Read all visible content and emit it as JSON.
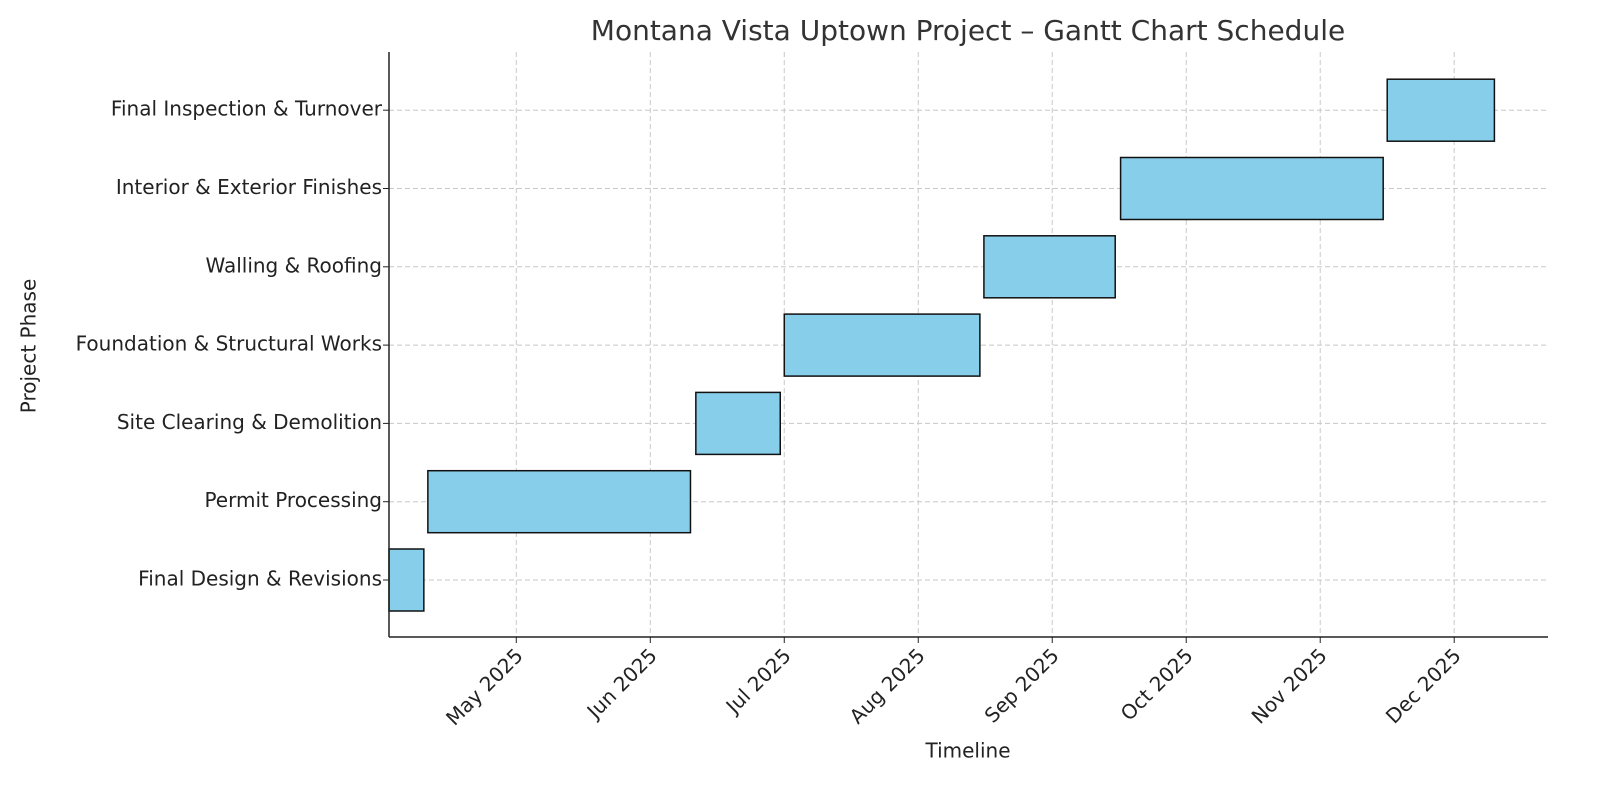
{
  "chart_data": {
    "type": "gantt",
    "title": "Montana Vista Uptown Project – Gantt Chart Schedule",
    "xlabel": "Timeline",
    "ylabel": "Project Phase",
    "categories": [
      "Final Design & Revisions",
      "Permit Processing",
      "Site Clearing & Demolition",
      "Foundation & Structural Works",
      "Walling & Roofing",
      "Interior & Exterior Finishes",
      "Final Inspection & Turnover"
    ],
    "start": [
      4.05,
      4.34,
      6.34,
      7.0,
      8.49,
      9.51,
      11.5
    ],
    "end": [
      4.31,
      6.3,
      6.97,
      8.46,
      9.47,
      11.47,
      12.3
    ],
    "color": "#87ceeb",
    "edgecolor": "#111111",
    "xlim": [
      4.05,
      12.7
    ],
    "xticks": [
      {
        "value": 5,
        "label": "May 2025"
      },
      {
        "value": 6,
        "label": "Jun 2025"
      },
      {
        "value": 7,
        "label": "Jul 2025"
      },
      {
        "value": 8,
        "label": "Aug 2025"
      },
      {
        "value": 9,
        "label": "Sep 2025"
      },
      {
        "value": 10,
        "label": "Oct 2025"
      },
      {
        "value": 11,
        "label": "Nov 2025"
      },
      {
        "value": 12,
        "label": "Dec 2025"
      }
    ],
    "grid": true
  }
}
